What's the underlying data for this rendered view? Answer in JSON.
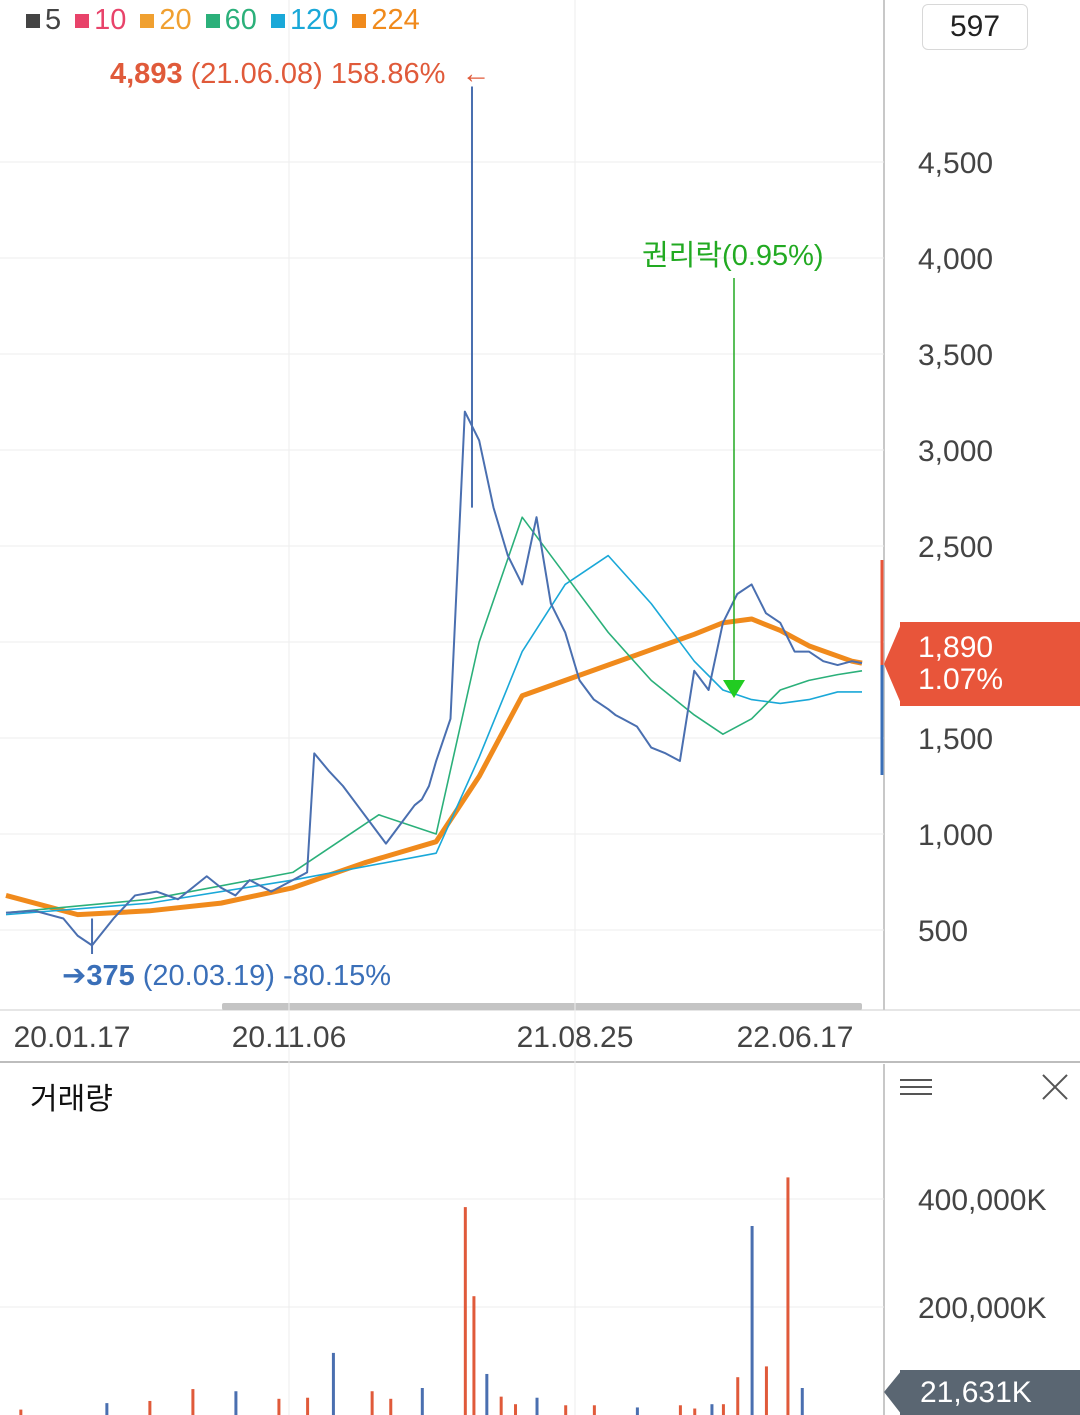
{
  "period_value": "597",
  "legend": [
    {
      "label": "5",
      "color": "#444444"
    },
    {
      "label": "10",
      "color": "#e8436a"
    },
    {
      "label": "20",
      "color": "#f0a030"
    },
    {
      "label": "60",
      "color": "#2bb07a"
    },
    {
      "label": "120",
      "color": "#1aa8d8"
    },
    {
      "label": "224",
      "color": "#f08a1c"
    }
  ],
  "high_annotation": {
    "value": "4,893",
    "detail": "(21.06.08) 158.86%",
    "arrow": "←",
    "color": "#e05a3a"
  },
  "low_annotation": {
    "arrow": "➔",
    "value": "375",
    "detail": "(20.03.19) -80.15%",
    "color": "#3a6fb8"
  },
  "event_annotation": {
    "label": "권리락(0.95%)",
    "color": "#22aa22"
  },
  "current_price": {
    "price": "1,890",
    "change": "1.07%",
    "color": "#e8553a"
  },
  "volume_panel": {
    "title": "거래량",
    "current": "21,631K"
  },
  "chart_data": [
    {
      "type": "line",
      "title": "",
      "x_labels": [
        "20.01.17",
        "20.11.06",
        "21.08.25",
        "22.06.17"
      ],
      "y_ticks": [
        500,
        1000,
        1500,
        2000,
        2500,
        3000,
        3500,
        4000,
        4500
      ],
      "y_tick_labels": [
        "500",
        "1,000",
        "1,500",
        "",
        "2,500",
        "3,000",
        "3,500",
        "4,000",
        "4,500"
      ],
      "ylim": [
        250,
        4900
      ],
      "grid": true,
      "price_series": {
        "name": "price",
        "x_index": [
          0,
          20,
          40,
          50,
          60,
          75,
          90,
          105,
          120,
          140,
          150,
          160,
          170,
          185,
          200,
          210,
          215,
          225,
          235,
          245,
          255,
          265,
          275,
          285,
          290,
          295,
          300,
          310,
          320,
          330,
          340,
          350,
          360,
          370,
          380,
          390,
          400,
          410,
          420,
          425,
          430,
          440,
          450,
          460,
          470,
          480,
          490,
          500,
          510,
          520,
          530,
          540,
          550,
          560,
          570,
          580,
          590,
          597
        ],
        "values": [
          590,
          600,
          560,
          470,
          420,
          560,
          680,
          700,
          660,
          780,
          720,
          680,
          760,
          700,
          760,
          800,
          1420,
          1330,
          1250,
          1150,
          1050,
          950,
          1050,
          1150,
          1180,
          1250,
          1380,
          1600,
          3200,
          3050,
          2700,
          2450,
          2300,
          2650,
          2200,
          2050,
          1800,
          1700,
          1650,
          1620,
          1600,
          1560,
          1450,
          1420,
          1380,
          1850,
          1750,
          2100,
          2250,
          2300,
          2150,
          2100,
          1950,
          1950,
          1900,
          1880,
          1900,
          1890
        ]
      },
      "ma_series": [
        {
          "name": "224",
          "color": "#f08a1c",
          "x_index": [
            0,
            50,
            100,
            150,
            200,
            250,
            300,
            330,
            360,
            390,
            420,
            450,
            480,
            500,
            520,
            540,
            560,
            590,
            597
          ],
          "values": [
            680,
            580,
            600,
            640,
            720,
            850,
            960,
            1300,
            1720,
            1800,
            1880,
            1960,
            2040,
            2100,
            2120,
            2060,
            1980,
            1900,
            1890
          ]
        },
        {
          "name": "120",
          "color": "#1aa8d8",
          "x_index": [
            0,
            100,
            200,
            300,
            330,
            360,
            390,
            420,
            450,
            480,
            500,
            520,
            540,
            560,
            580,
            597
          ],
          "values": [
            580,
            640,
            760,
            900,
            1400,
            1950,
            2300,
            2450,
            2200,
            1900,
            1750,
            1700,
            1680,
            1700,
            1740,
            1740
          ]
        },
        {
          "name": "60",
          "color": "#2bb07a",
          "x_index": [
            0,
            100,
            200,
            260,
            300,
            330,
            360,
            390,
            420,
            450,
            480,
            500,
            520,
            540,
            560,
            580,
            597
          ],
          "values": [
            590,
            660,
            800,
            1100,
            1000,
            2000,
            2650,
            2350,
            2050,
            1800,
            1620,
            1520,
            1600,
            1750,
            1800,
            1830,
            1850
          ]
        }
      ]
    },
    {
      "type": "bar",
      "title": "거래량",
      "y_ticks": [
        200000,
        400000
      ],
      "y_tick_labels": [
        "200,000K",
        "400,000K"
      ],
      "ylim": [
        0,
        480000
      ],
      "grid": true,
      "x_index": [
        10,
        70,
        100,
        130,
        160,
        190,
        210,
        228,
        255,
        268,
        290,
        320,
        326,
        335,
        345,
        355,
        370,
        390,
        410,
        440,
        470,
        480,
        492,
        500,
        510,
        520,
        530,
        545,
        555
      ],
      "values": [
        10000,
        22000,
        26000,
        48000,
        44000,
        30000,
        32000,
        115000,
        44000,
        30000,
        50000,
        385000,
        220000,
        76000,
        34000,
        20000,
        32000,
        18000,
        18000,
        14000,
        18000,
        12000,
        20000,
        20000,
        70000,
        350000,
        90000,
        440000,
        50000
      ]
    }
  ]
}
